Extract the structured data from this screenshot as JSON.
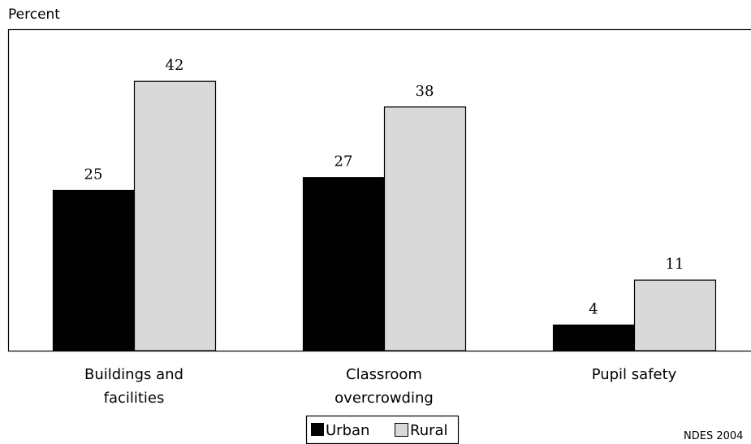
{
  "chart_data": {
    "type": "bar",
    "ylabel": "Percent",
    "categories": [
      [
        "Buildings and",
        "facilities"
      ],
      [
        "Classroom",
        "overcrowding"
      ],
      [
        "Pupil safety"
      ]
    ],
    "series": [
      {
        "name": "Urban",
        "color": "#000000",
        "values": [
          25,
          27,
          4
        ]
      },
      {
        "name": "Rural",
        "color": "#d9d9d9",
        "values": [
          42,
          38,
          11
        ]
      }
    ],
    "ylim": [
      0,
      50
    ],
    "grid": false,
    "legend_position": "bottom-center",
    "source": "NDES 2004"
  }
}
